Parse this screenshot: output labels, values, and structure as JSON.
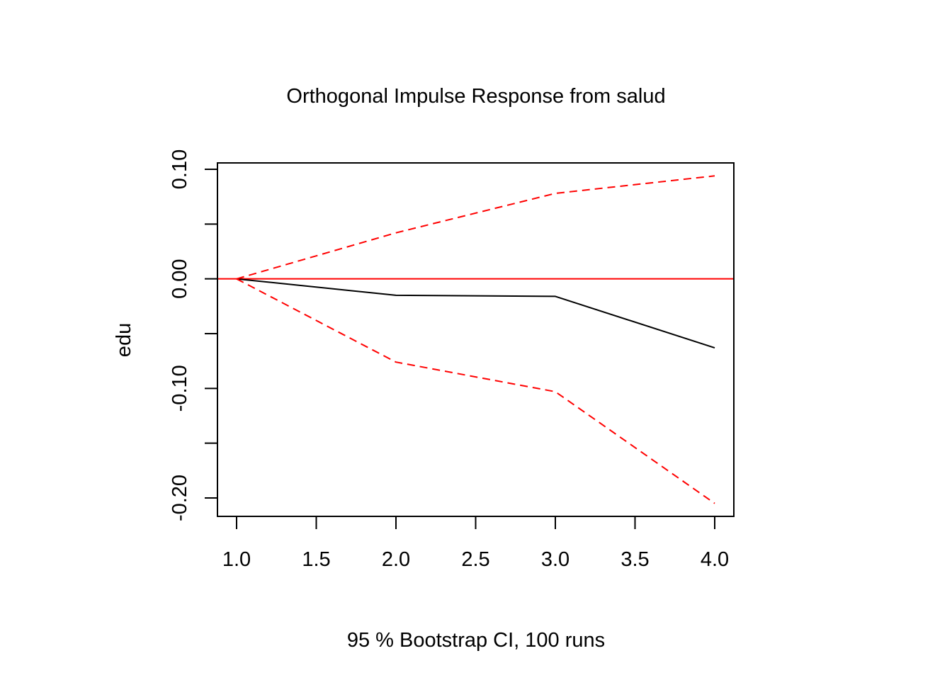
{
  "chart_data": {
    "type": "line",
    "title": "Orthogonal Impulse Response from salud",
    "xlabel": "95 % Bootstrap CI,  100 runs",
    "ylabel": "edu",
    "xlim": [
      1.0,
      4.0
    ],
    "ylim": [
      -0.2,
      0.1
    ],
    "x_ticks": [
      "1.0",
      "1.5",
      "2.0",
      "2.5",
      "3.0",
      "3.5",
      "4.0"
    ],
    "y_ticks": [
      "0.10",
      "0.00",
      "-0.10",
      "-0.20"
    ],
    "x": [
      1,
      2,
      3,
      4
    ],
    "zero_line": 0,
    "series": [
      {
        "name": "edu",
        "values": [
          0.0,
          -0.015,
          -0.016,
          -0.063
        ],
        "color": "#000000",
        "style": "solid"
      },
      {
        "name": "Upper",
        "values": [
          0.0,
          0.042,
          0.078,
          0.094
        ],
        "color": "#ff0000",
        "style": "dashed"
      },
      {
        "name": "Lower",
        "values": [
          0.0,
          -0.076,
          -0.103,
          -0.205
        ],
        "color": "#ff0000",
        "style": "dashed"
      }
    ]
  }
}
